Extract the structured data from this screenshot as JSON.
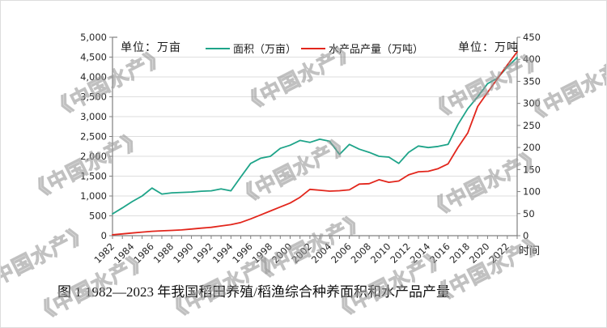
{
  "figure": {
    "caption": "图 1 1982—2023 年我国稻田养殖/稻渔综合种养面积和水产品产量",
    "watermark_text": "《中国水产》"
  },
  "chart_data": {
    "type": "line",
    "title": "图 1 1982—2023 年我国稻田养殖/稻渔综合种养面积和水产品产量",
    "xlabel": "时间",
    "grid": true,
    "legend_position": "top",
    "grid_color": "#dedede",
    "axis_color": "#808080",
    "x": [
      1982,
      1983,
      1984,
      1985,
      1986,
      1987,
      1988,
      1989,
      1990,
      1991,
      1992,
      1993,
      1994,
      1995,
      1996,
      1997,
      1998,
      1999,
      2000,
      2001,
      2002,
      2003,
      2004,
      2005,
      2006,
      2007,
      2008,
      2009,
      2010,
      2011,
      2012,
      2013,
      2014,
      2015,
      2016,
      2017,
      2018,
      2019,
      2020,
      2021,
      2022,
      2023
    ],
    "x_tick_labels": [
      "1982",
      "1984",
      "1986",
      "1988",
      "1990",
      "1992",
      "1994",
      "1996",
      "1998",
      "2000",
      "2002",
      "2004",
      "2006",
      "2008",
      "2010",
      "2012",
      "2014",
      "2016",
      "2018",
      "2020",
      "2022"
    ],
    "left_axis": {
      "unit_label": "单位：万亩",
      "min": 0,
      "max": 5000,
      "tick_step": 500
    },
    "right_axis": {
      "unit_label": "单位：万吨",
      "min": 0,
      "max": 450,
      "tick_step": 50
    },
    "series": [
      {
        "name": "面积（万亩）",
        "axis": "left",
        "color": "#1ea489",
        "values": [
          550,
          700,
          860,
          1000,
          1200,
          1050,
          1080,
          1090,
          1100,
          1120,
          1130,
          1180,
          1130,
          1480,
          1820,
          1950,
          2000,
          2200,
          2280,
          2400,
          2350,
          2430,
          2380,
          2050,
          2300,
          2180,
          2100,
          2000,
          1980,
          1820,
          2100,
          2260,
          2220,
          2250,
          2300,
          2800,
          3200,
          3500,
          3830,
          3970,
          4250,
          4490
        ]
      },
      {
        "name": "水产品产量（万吨）",
        "axis": "right",
        "color": "#e2261c",
        "values": [
          2,
          4,
          6,
          8,
          10,
          11,
          12,
          13,
          15,
          17,
          19,
          22,
          25,
          30,
          38,
          47,
          56,
          65,
          74,
          87,
          105,
          103,
          101,
          102,
          104,
          117,
          118,
          127,
          121,
          124,
          138,
          145,
          146,
          152,
          163,
          200,
          233,
          293,
          325,
          356,
          387,
          417
        ]
      }
    ]
  }
}
